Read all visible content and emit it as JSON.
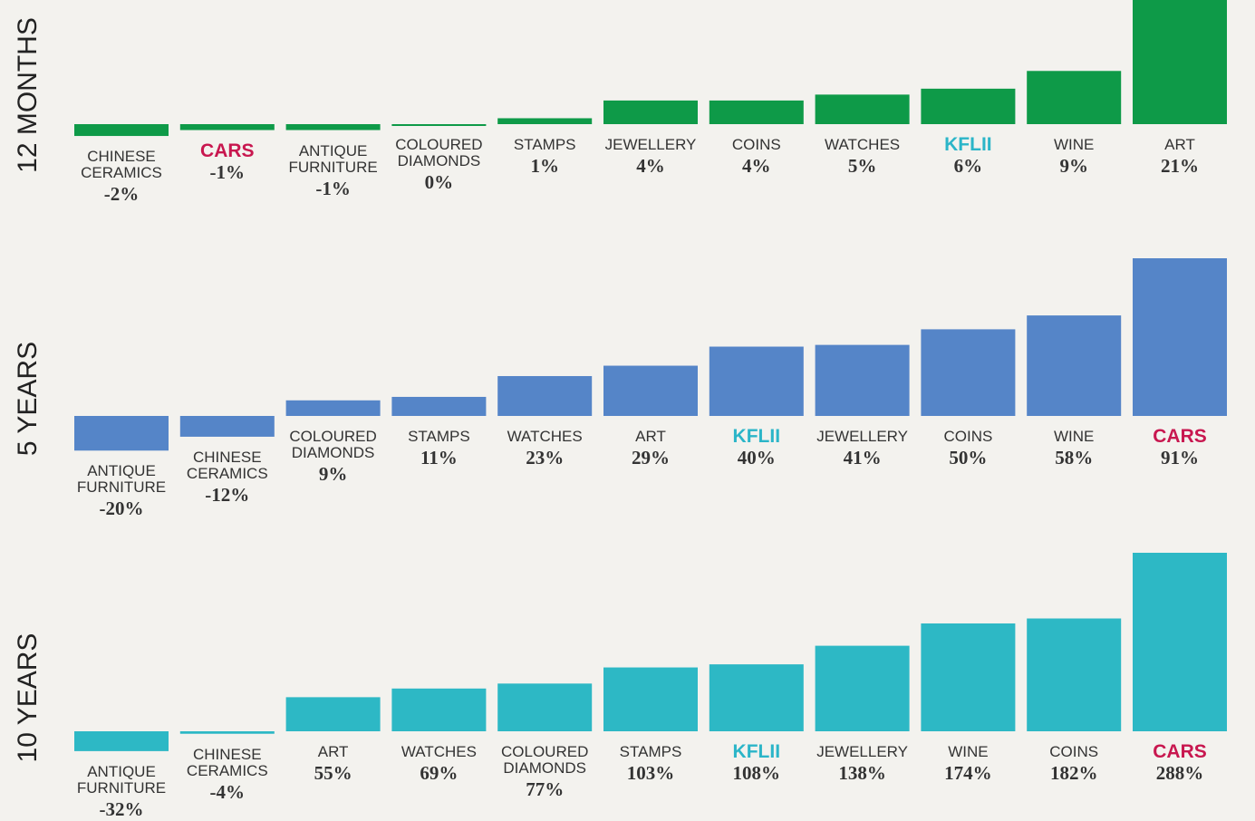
{
  "chart_data": [
    {
      "type": "bar",
      "title": "12 MONTHS",
      "color": "#0e9a48",
      "categories": [
        "CHINESE CERAMICS",
        "CARS",
        "ANTIQUE FURNITURE",
        "COLOURED DIAMONDS",
        "STAMPS",
        "JEWELLERY",
        "COINS",
        "WATCHES",
        "KFLII",
        "WINE",
        "ART"
      ],
      "values": [
        -2,
        -1,
        -1,
        0,
        1,
        4,
        4,
        5,
        6,
        9,
        21
      ],
      "value_labels": [
        "-2%",
        "-1%",
        "-1%",
        "0%",
        "1%",
        "4%",
        "4%",
        "5%",
        "6%",
        "9%",
        "21%"
      ],
      "label_colors": [
        "#333333",
        "#c8174f",
        "#333333",
        "#333333",
        "#333333",
        "#333333",
        "#333333",
        "#333333",
        "#2bb5c8",
        "#333333",
        "#333333"
      ]
    },
    {
      "type": "bar",
      "title": "5 YEARS",
      "color": "#5585c8",
      "categories": [
        "ANTIQUE FURNITURE",
        "CHINESE CERAMICS",
        "COLOURED DIAMONDS",
        "STAMPS",
        "WATCHES",
        "ART",
        "KFLII",
        "JEWELLERY",
        "COINS",
        "WINE",
        "CARS"
      ],
      "values": [
        -20,
        -12,
        9,
        11,
        23,
        29,
        40,
        41,
        50,
        58,
        91
      ],
      "value_labels": [
        "-20%",
        "-12%",
        "9%",
        "11%",
        "23%",
        "29%",
        "40%",
        "41%",
        "50%",
        "58%",
        "91%"
      ],
      "label_colors": [
        "#333333",
        "#333333",
        "#333333",
        "#333333",
        "#333333",
        "#333333",
        "#2bb5c8",
        "#333333",
        "#333333",
        "#333333",
        "#c8174f"
      ]
    },
    {
      "type": "bar",
      "title": "10 YEARS",
      "color": "#2db8c5",
      "categories": [
        "ANTIQUE FURNITURE",
        "CHINESE CERAMICS",
        "ART",
        "WATCHES",
        "COLOURED DIAMONDS",
        "STAMPS",
        "KFLII",
        "JEWELLERY",
        "WINE",
        "COINS",
        "CARS"
      ],
      "values": [
        -32,
        -4,
        55,
        69,
        77,
        103,
        108,
        138,
        174,
        182,
        288
      ],
      "value_labels": [
        "-32%",
        "-4%",
        "55%",
        "69%",
        "77%",
        "103%",
        "108%",
        "138%",
        "174%",
        "182%",
        "288%"
      ],
      "label_colors": [
        "#333333",
        "#333333",
        "#333333",
        "#333333",
        "#333333",
        "#333333",
        "#2bb5c8",
        "#333333",
        "#333333",
        "#333333",
        "#c8174f"
      ]
    }
  ]
}
